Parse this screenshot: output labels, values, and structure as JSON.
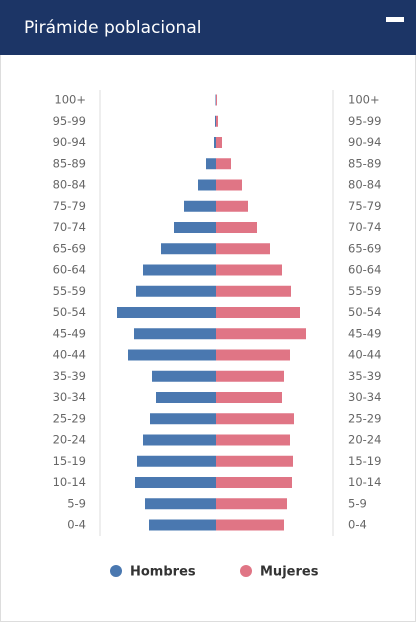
{
  "header": {
    "title": "Pirámide poblacional"
  },
  "chart_data": {
    "type": "pyramid",
    "categories": [
      "100+",
      "95-99",
      "90-94",
      "85-89",
      "80-84",
      "75-79",
      "70-74",
      "65-69",
      "60-64",
      "55-59",
      "50-54",
      "45-49",
      "40-44",
      "35-39",
      "30-34",
      "25-29",
      "20-24",
      "15-19",
      "10-14",
      "5-9",
      "0-4"
    ],
    "series": [
      {
        "name": "Hombres",
        "color": "#4a78b0",
        "values": [
          0.5,
          1,
          2,
          10,
          18,
          32,
          42,
          55,
          73,
          80,
          99,
          82,
          88,
          64,
          60,
          66,
          73,
          79,
          81,
          71,
          67
        ]
      },
      {
        "name": "Mujeres",
        "color": "#e07585",
        "values": [
          1,
          2,
          6,
          15,
          26,
          32,
          41,
          54,
          66,
          75,
          84,
          90,
          74,
          68,
          66,
          78,
          74,
          77,
          76,
          71,
          68
        ]
      }
    ]
  }
}
